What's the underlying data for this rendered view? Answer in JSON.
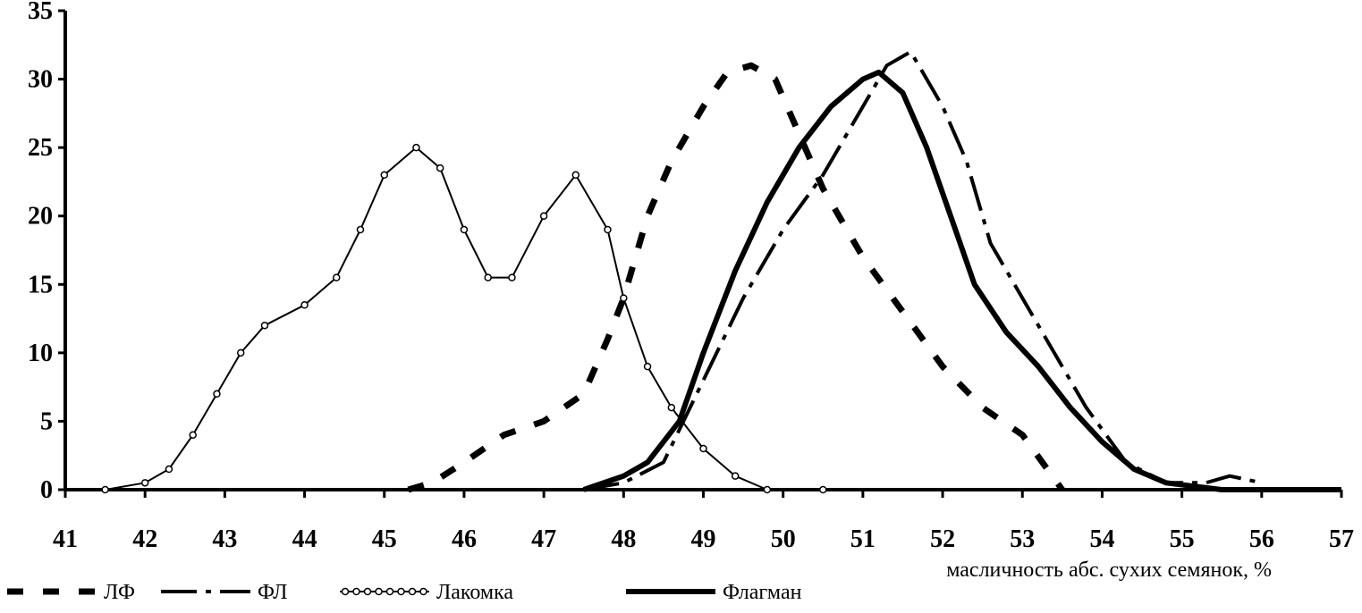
{
  "chart_data": {
    "type": "line",
    "title": "",
    "xlabel": "масличность абс. сухих семянок, %",
    "ylabel": "",
    "xlim": [
      41,
      57
    ],
    "ylim": [
      0,
      35
    ],
    "x_ticks": [
      "41",
      "42",
      "43",
      "44",
      "45",
      "46",
      "47",
      "48",
      "49",
      "50",
      "51",
      "52",
      "53",
      "54",
      "55",
      "56",
      "57"
    ],
    "y_ticks": [
      "0",
      "5",
      "10",
      "15",
      "20",
      "25",
      "30",
      "35"
    ],
    "grid": false,
    "legend_position": "bottom",
    "series": [
      {
        "name": "ЛФ",
        "style": "dashed-thick",
        "color": "#000000",
        "points": [
          [
            45.3,
            0
          ],
          [
            45.6,
            0.5
          ],
          [
            46.0,
            2
          ],
          [
            46.5,
            4
          ],
          [
            47.0,
            5
          ],
          [
            47.5,
            7
          ],
          [
            47.8,
            11
          ],
          [
            48.0,
            14
          ],
          [
            48.3,
            20
          ],
          [
            48.6,
            24
          ],
          [
            49.0,
            28
          ],
          [
            49.3,
            30.5
          ],
          [
            49.6,
            31
          ],
          [
            49.9,
            30
          ],
          [
            50.2,
            26
          ],
          [
            50.5,
            22
          ],
          [
            51.0,
            17
          ],
          [
            51.5,
            13
          ],
          [
            52.0,
            9
          ],
          [
            52.5,
            6
          ],
          [
            53.0,
            4
          ],
          [
            53.5,
            0
          ]
        ]
      },
      {
        "name": "ФЛ",
        "style": "dash-dot",
        "color": "#000000",
        "points": [
          [
            47.5,
            0
          ],
          [
            48.0,
            0.5
          ],
          [
            48.5,
            2
          ],
          [
            49.0,
            8
          ],
          [
            49.5,
            14
          ],
          [
            50.0,
            19
          ],
          [
            50.5,
            23
          ],
          [
            51.0,
            28
          ],
          [
            51.3,
            31
          ],
          [
            51.6,
            32
          ],
          [
            52.0,
            28
          ],
          [
            52.3,
            24
          ],
          [
            52.6,
            18
          ],
          [
            53.0,
            14
          ],
          [
            53.4,
            10
          ],
          [
            53.8,
            6
          ],
          [
            54.3,
            2
          ],
          [
            54.8,
            0.5
          ],
          [
            55.3,
            0.5
          ],
          [
            55.6,
            1
          ],
          [
            56.0,
            0.5
          ]
        ]
      },
      {
        "name": "Лакомка",
        "style": "open-markers",
        "color": "#000000",
        "points": [
          [
            41.5,
            0
          ],
          [
            42.0,
            0.5
          ],
          [
            42.3,
            1.5
          ],
          [
            42.6,
            4
          ],
          [
            42.9,
            7
          ],
          [
            43.2,
            10
          ],
          [
            43.5,
            12
          ],
          [
            44.0,
            13.5
          ],
          [
            44.4,
            15.5
          ],
          [
            44.7,
            19
          ],
          [
            45.0,
            23
          ],
          [
            45.4,
            25
          ],
          [
            45.7,
            23.5
          ],
          [
            46.0,
            19
          ],
          [
            46.3,
            15.5
          ],
          [
            46.6,
            15.5
          ],
          [
            47.0,
            20
          ],
          [
            47.4,
            23
          ],
          [
            47.8,
            19
          ],
          [
            48.0,
            14
          ],
          [
            48.3,
            9
          ],
          [
            48.6,
            6
          ],
          [
            49.0,
            3
          ],
          [
            49.4,
            1
          ],
          [
            49.8,
            0
          ],
          [
            50.5,
            0
          ]
        ]
      },
      {
        "name": "Флагман",
        "style": "solid-thick",
        "color": "#000000",
        "points": [
          [
            47.5,
            0
          ],
          [
            48.0,
            1
          ],
          [
            48.3,
            2
          ],
          [
            48.7,
            5
          ],
          [
            49.0,
            10
          ],
          [
            49.4,
            16
          ],
          [
            49.8,
            21
          ],
          [
            50.2,
            25
          ],
          [
            50.6,
            28
          ],
          [
            51.0,
            30
          ],
          [
            51.2,
            30.5
          ],
          [
            51.5,
            29
          ],
          [
            51.8,
            25
          ],
          [
            52.1,
            20
          ],
          [
            52.4,
            15
          ],
          [
            52.8,
            11.5
          ],
          [
            53.2,
            9
          ],
          [
            53.6,
            6
          ],
          [
            54.0,
            3.5
          ],
          [
            54.4,
            1.5
          ],
          [
            54.8,
            0.5
          ],
          [
            55.5,
            0
          ],
          [
            57.0,
            0
          ]
        ]
      }
    ]
  }
}
